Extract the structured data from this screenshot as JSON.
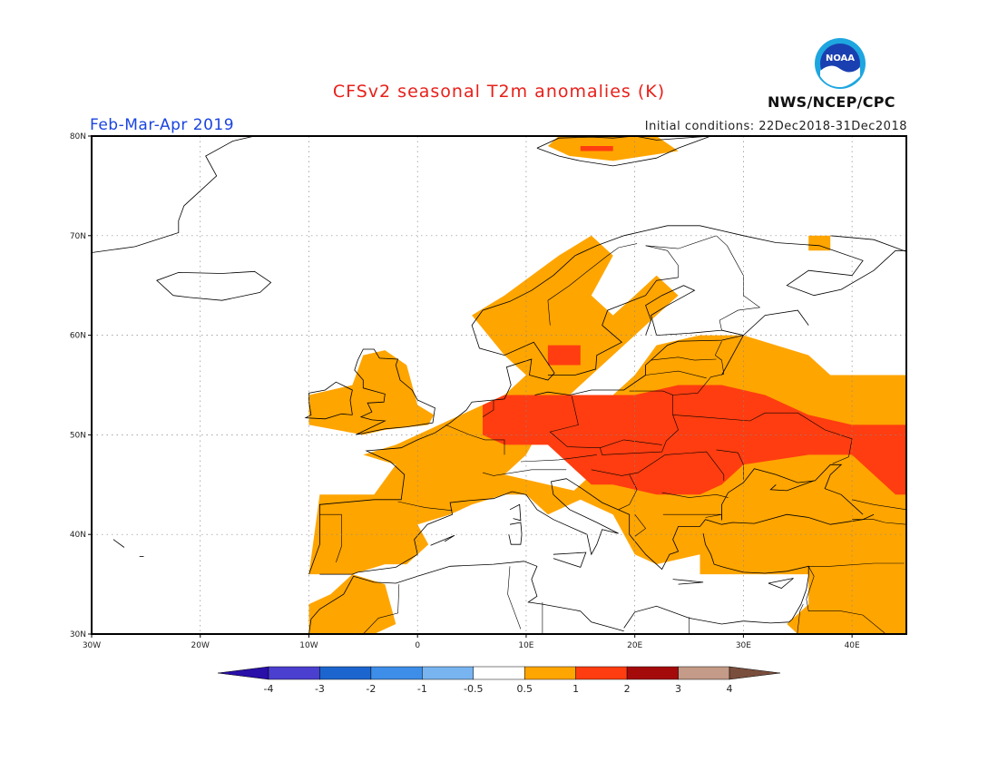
{
  "title": "CFSv2 seasonal T2m anomalies (K)",
  "period": "Feb-Mar-Apr 2019",
  "initial_conditions": "Initial conditions: 22Dec2018-31Dec2018",
  "agency": "NWS/NCEP/CPC",
  "logo_text": "NOAA",
  "map": {
    "lon_range": [
      -30,
      45
    ],
    "lat_range": [
      30,
      80
    ],
    "lon_ticks": [
      {
        "value": -30,
        "label": "30W"
      },
      {
        "value": -20,
        "label": "20W"
      },
      {
        "value": -10,
        "label": "10W"
      },
      {
        "value": 0,
        "label": "0"
      },
      {
        "value": 10,
        "label": "10E"
      },
      {
        "value": 20,
        "label": "20E"
      },
      {
        "value": 30,
        "label": "30E"
      },
      {
        "value": 40,
        "label": "40E"
      }
    ],
    "lat_ticks": [
      {
        "value": 30,
        "label": "30N"
      },
      {
        "value": 40,
        "label": "40N"
      },
      {
        "value": 50,
        "label": "50N"
      },
      {
        "value": 60,
        "label": "60N"
      },
      {
        "value": 70,
        "label": "70N"
      },
      {
        "value": 80,
        "label": "80N"
      }
    ],
    "grid": true
  },
  "anomaly_regions": [
    {
      "level": "0.5-1",
      "color": "#ffa500",
      "region": "western-europe",
      "poly": [
        [
          -10,
          36
        ],
        [
          -9,
          44
        ],
        [
          -4,
          44
        ],
        [
          -2,
          47
        ],
        [
          -5,
          48
        ],
        [
          -2,
          49
        ],
        [
          2,
          51
        ],
        [
          4,
          52
        ],
        [
          8,
          54
        ],
        [
          10,
          56
        ],
        [
          8,
          58
        ],
        [
          5,
          62
        ],
        [
          8,
          64
        ],
        [
          13,
          68
        ],
        [
          16,
          70
        ],
        [
          18,
          68
        ],
        [
          16,
          64
        ],
        [
          18,
          62
        ],
        [
          20,
          64
        ],
        [
          22,
          66
        ],
        [
          24,
          64
        ],
        [
          22,
          62
        ],
        [
          20,
          60
        ],
        [
          18,
          58
        ],
        [
          16,
          56
        ],
        [
          14,
          54
        ],
        [
          12,
          52
        ],
        [
          10,
          48
        ],
        [
          8,
          46
        ],
        [
          12,
          45
        ],
        [
          16,
          44
        ],
        [
          12,
          42
        ],
        [
          10,
          44
        ],
        [
          8,
          44
        ],
        [
          5,
          43
        ],
        [
          3,
          42
        ],
        [
          0,
          41
        ],
        [
          1,
          39
        ],
        [
          -1,
          37
        ],
        [
          -3,
          37
        ],
        [
          -6,
          36
        ]
      ]
    },
    {
      "level": "0.5-1",
      "color": "#ffa500",
      "region": "uk-ireland",
      "poly": [
        [
          -10,
          51
        ],
        [
          -10,
          54
        ],
        [
          -6,
          55
        ],
        [
          -5,
          58
        ],
        [
          -3,
          58.5
        ],
        [
          -1,
          57
        ],
        [
          0,
          53
        ],
        [
          1.5,
          52
        ],
        [
          1,
          51
        ],
        [
          -3,
          50.5
        ],
        [
          -5,
          50
        ]
      ]
    },
    {
      "level": "0.5-1",
      "color": "#ffa500",
      "region": "north-africa",
      "poly": [
        [
          -10,
          30
        ],
        [
          -10,
          33
        ],
        [
          -8,
          34
        ],
        [
          -6,
          36
        ],
        [
          -3,
          35
        ],
        [
          -2,
          31
        ],
        [
          -4,
          30
        ]
      ]
    },
    {
      "level": "0.5-1",
      "color": "#ffa500",
      "region": "eastern-europe-turkey",
      "poly": [
        [
          16,
          52
        ],
        [
          16,
          46
        ],
        [
          14,
          44
        ],
        [
          18,
          42
        ],
        [
          20,
          38
        ],
        [
          22,
          37
        ],
        [
          26,
          38
        ],
        [
          26,
          36
        ],
        [
          30,
          36
        ],
        [
          36,
          36
        ],
        [
          36,
          33
        ],
        [
          34,
          31
        ],
        [
          35,
          30
        ],
        [
          45,
          30
        ],
        [
          45,
          56
        ],
        [
          38,
          56
        ],
        [
          36,
          58
        ],
        [
          30,
          60
        ],
        [
          26,
          60
        ],
        [
          22,
          59
        ],
        [
          20,
          56
        ],
        [
          18,
          54
        ]
      ]
    },
    {
      "level": "0.5-1",
      "color": "#ffa500",
      "region": "svalbard",
      "poly": [
        [
          12,
          79
        ],
        [
          13,
          80
        ],
        [
          22,
          80
        ],
        [
          24,
          78.5
        ],
        [
          18,
          77.5
        ],
        [
          14,
          78
        ]
      ]
    },
    {
      "level": "0.5-1",
      "color": "#ffa500",
      "region": "kola",
      "poly": [
        [
          36,
          68.5
        ],
        [
          36,
          70
        ],
        [
          38,
          70
        ],
        [
          38,
          68.5
        ]
      ]
    },
    {
      "level": "1-2",
      "color": "#ff3d10",
      "region": "central-europe",
      "poly": [
        [
          6,
          53
        ],
        [
          6,
          50
        ],
        [
          8,
          49
        ],
        [
          12,
          49
        ],
        [
          14,
          47
        ],
        [
          16,
          45
        ],
        [
          18,
          45
        ],
        [
          22,
          44
        ],
        [
          26,
          44
        ],
        [
          28,
          45
        ],
        [
          30,
          47
        ],
        [
          36,
          48
        ],
        [
          40,
          48
        ],
        [
          44,
          44
        ],
        [
          45,
          44
        ],
        [
          45,
          51
        ],
        [
          40,
          51
        ],
        [
          36,
          52
        ],
        [
          32,
          54
        ],
        [
          28,
          55
        ],
        [
          24,
          55
        ],
        [
          20,
          54
        ],
        [
          16,
          54
        ],
        [
          12,
          54
        ],
        [
          8,
          54
        ]
      ]
    },
    {
      "level": "1-2",
      "color": "#ff3d10",
      "region": "denmark-sweden",
      "poly": [
        [
          12,
          57
        ],
        [
          12,
          59
        ],
        [
          15,
          59
        ],
        [
          15,
          57
        ]
      ]
    },
    {
      "level": "1-2",
      "color": "#ff3d10",
      "region": "svalbard-red",
      "poly": [
        [
          15,
          78.5
        ],
        [
          15,
          79
        ],
        [
          18,
          79
        ],
        [
          18,
          78.5
        ]
      ]
    }
  ],
  "legend": {
    "ticks": [
      "-4",
      "-3",
      "-2",
      "-1",
      "-0.5",
      "0.5",
      "1",
      "2",
      "3",
      "4"
    ],
    "colors": [
      "#2a0fa8",
      "#4b3fd0",
      "#1c65cf",
      "#3d8ee8",
      "#78b4f0",
      "#ffffff",
      "#ffa500",
      "#ff3d10",
      "#a40a0a",
      "#c49a88",
      "#7a4e3c"
    ]
  }
}
